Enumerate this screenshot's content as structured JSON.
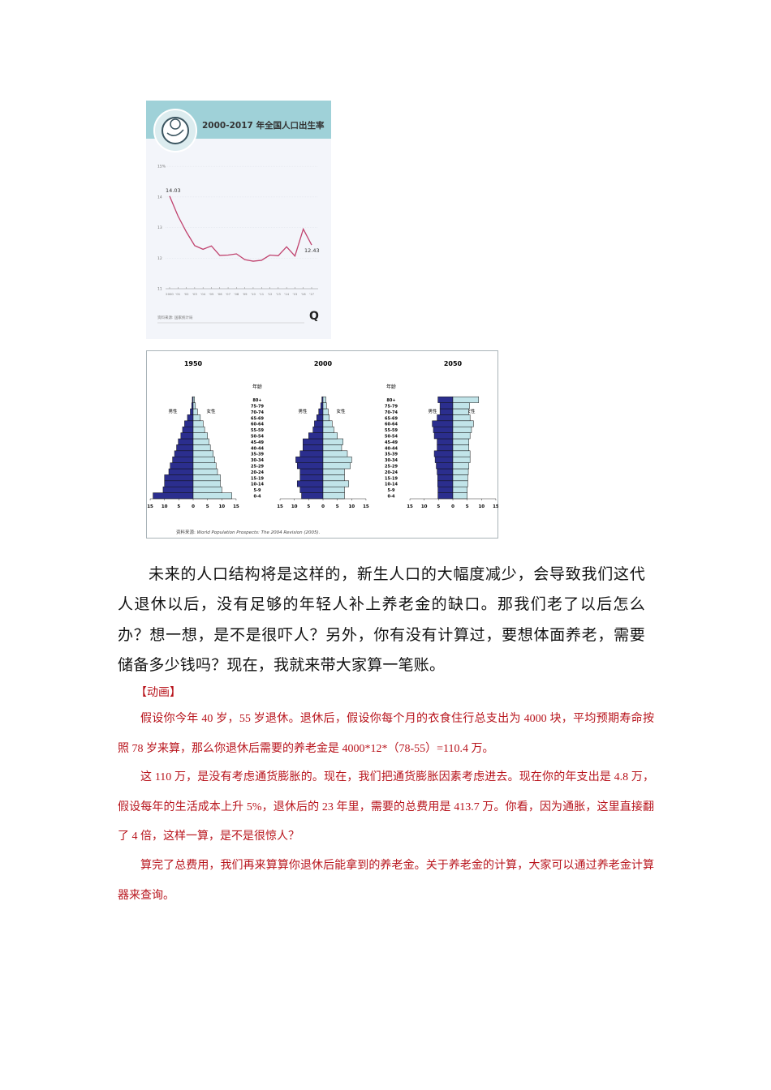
{
  "chart_data": [
    {
      "type": "line",
      "title": "2000-2017 年全国人口出生率",
      "x": [
        "2000",
        "'01",
        "'02",
        "'03",
        "'04",
        "'05",
        "'06",
        "'07",
        "'08",
        "'09",
        "'10",
        "'11",
        "'12",
        "'13",
        "'14",
        "'15",
        "'16",
        "'17"
      ],
      "values": [
        14.03,
        13.38,
        12.86,
        12.41,
        12.29,
        12.4,
        12.09,
        12.1,
        12.14,
        11.95,
        11.9,
        11.93,
        12.1,
        12.08,
        12.37,
        12.07,
        12.95,
        12.43
      ],
      "data_labels": {
        "first": "14.03",
        "last": "12.43"
      },
      "y_ticks": [
        "11",
        "12",
        "13",
        "14",
        "15%"
      ],
      "ylim": [
        11,
        15
      ],
      "grid": true,
      "line_color": "#c0426e",
      "header_color": "#9fd1d8",
      "source": "资料来源: 国家统计局",
      "logo": "Q"
    },
    {
      "type": "bar",
      "subtype": "population-pyramid",
      "age_axis_label": "年龄",
      "age_groups": [
        "0-4",
        "5-9",
        "10-14",
        "15-19",
        "20-24",
        "25-29",
        "30-34",
        "35-39",
        "40-44",
        "45-49",
        "50-54",
        "55-59",
        "60-64",
        "65-69",
        "70-74",
        "75-79",
        "80+"
      ],
      "male_label": "男性",
      "female_label": "女性",
      "x_ticks": [
        "15",
        "10",
        "5",
        "0",
        "5",
        "10",
        "15"
      ],
      "xlim": [
        -15,
        15
      ],
      "male_color": "#2b2e8e",
      "female_color": "#c1e4e9",
      "panels": [
        {
          "title": "1950",
          "male": [
            14,
            10.5,
            10,
            10,
            8.5,
            8,
            7.2,
            6.5,
            5.8,
            5.2,
            4.3,
            3.7,
            3,
            2,
            1,
            0.5,
            0.3
          ],
          "female": [
            13.5,
            10,
            9.5,
            9.5,
            8.5,
            8,
            7.5,
            7,
            6,
            5.5,
            5,
            4,
            3.5,
            2.5,
            1.5,
            0.8,
            0.5
          ]
        },
        {
          "title": "2000",
          "male": [
            7.5,
            8,
            9,
            8,
            8,
            9,
            9.5,
            8,
            7,
            7,
            5,
            3.5,
            3,
            2.2,
            1.5,
            0.8,
            0.4
          ],
          "female": [
            7.5,
            7.5,
            9,
            7.5,
            7.5,
            9.5,
            10,
            8.5,
            6.5,
            7,
            5,
            3.8,
            3.2,
            2.2,
            1.8,
            1.2,
            1
          ]
        },
        {
          "title": "2050",
          "male": [
            5.2,
            5.2,
            5.3,
            5.3,
            5.5,
            5.8,
            6.2,
            6.5,
            5.5,
            5.5,
            6.5,
            6.8,
            7.2,
            5.5,
            4.5,
            4.5,
            5.2
          ],
          "female": [
            5,
            5,
            5.2,
            5.2,
            5.4,
            5.6,
            6,
            6,
            5.6,
            5.6,
            6,
            6.5,
            7.2,
            6,
            5.5,
            5.8,
            9
          ]
        }
      ],
      "source_prefix": "资料来源: ",
      "source_title": "World Population Prospects: The 2004 Revision (2005)."
    }
  ],
  "body": {
    "paragraph": "未来的人口结构将是这样的，新生人口的大幅度减少，会导致我们这代人退休以后，没有足够的年轻人补上养老金的缺口。那我们老了以后怎么办？想一想，是不是很吓人？另外，你有没有计算过，要想体面养老，需要储备多少钱吗？现在，我就来带大家算一笔账。",
    "animation_label": "【动画】",
    "red_paragraphs": [
      "假设你今年 40 岁，55 岁退休。退休后，假设你每个月的衣食住行总支出为 4000 块，平均预期寿命按照 78 岁来算，那么你退休后需要的养老金是 4000*12*（78-55）=110.4 万。",
      "这 110 万，是没有考虑通货膨胀的。现在，我们把通货膨胀因素考虑进去。现在你的年支出是 4.8 万，假设每年的生活成本上升 5%，退休后的 23 年里，需要的总费用是 413.7 万。你看，因为通胀，这里直接翻了 4 倍，这样一算，是不是很惊人？",
      "算完了总费用，我们再来算算你退休后能拿到的养老金。关于养老金的计算，大家可以通过养老金计算器来查询。"
    ]
  }
}
